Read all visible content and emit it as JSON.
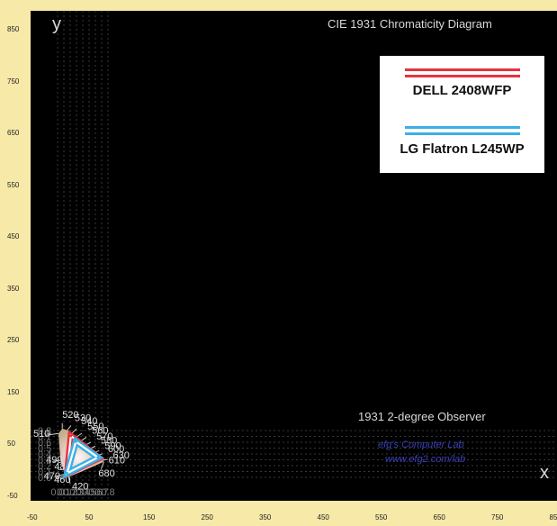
{
  "diagram": {
    "title": "CIE 1931 Chromaticity Diagram",
    "observer_label": "1931 2-degree Observer",
    "credit_line1": "efg's Computer Lab",
    "credit_line2": "www.efg2.com/lab",
    "x_axis_letter": "x",
    "y_axis_letter": "y",
    "x_ticks": [
      "0.0",
      "0.1",
      "0.2",
      "0.3",
      "0.4",
      "0.5",
      "0.6",
      "0.7",
      "0.8"
    ],
    "y_ticks": [
      "0.0",
      "0.1",
      "0.2",
      "0.3",
      "0.4",
      "0.5",
      "0.6",
      "0.7",
      "0.8"
    ],
    "wavelengths": [
      {
        "nm": "420",
        "x": 0.1714,
        "y": 0.0051
      },
      {
        "nm": "460",
        "x": 0.144,
        "y": 0.0297
      },
      {
        "nm": "470",
        "x": 0.1241,
        "y": 0.0578
      },
      {
        "nm": "480",
        "x": 0.0913,
        "y": 0.1327
      },
      {
        "nm": "490",
        "x": 0.0454,
        "y": 0.295
      },
      {
        "nm": "510",
        "x": 0.0139,
        "y": 0.7502
      },
      {
        "nm": "520",
        "x": 0.0743,
        "y": 0.8338
      },
      {
        "nm": "530",
        "x": 0.1547,
        "y": 0.8059
      },
      {
        "nm": "540",
        "x": 0.2296,
        "y": 0.7543
      },
      {
        "nm": "550",
        "x": 0.3016,
        "y": 0.6923
      },
      {
        "nm": "560",
        "x": 0.3731,
        "y": 0.6245
      },
      {
        "nm": "570",
        "x": 0.4441,
        "y": 0.5547
      },
      {
        "nm": "580",
        "x": 0.5125,
        "y": 0.4866
      },
      {
        "nm": "590",
        "x": 0.5752,
        "y": 0.4242
      },
      {
        "nm": "600",
        "x": 0.627,
        "y": 0.3725
      },
      {
        "nm": "610",
        "x": 0.6658,
        "y": 0.334
      },
      {
        "nm": "630",
        "x": 0.7079,
        "y": 0.292
      },
      {
        "nm": "680",
        "x": 0.7347,
        "y": 0.2653
      }
    ]
  },
  "outer_axis": {
    "left_ticks": [
      "850",
      "750",
      "650",
      "550",
      "450",
      "350",
      "250",
      "150",
      "50",
      "-50"
    ],
    "bottom_ticks": [
      "-50",
      "50",
      "150",
      "250",
      "350",
      "450",
      "550",
      "650",
      "750",
      "850"
    ]
  },
  "legend": {
    "items": [
      {
        "label": "DELL 2408WFP",
        "color": "#e8323c"
      },
      {
        "label": "LG Flatron L245WP",
        "color": "#3ab0e6"
      }
    ]
  },
  "chart_data": {
    "type": "scatter",
    "title": "CIE 1931 Chromaticity Diagram",
    "xlabel": "x",
    "ylabel": "y",
    "xlim": [
      -0.05,
      0.85
    ],
    "ylim": [
      -0.05,
      0.85
    ],
    "series": [
      {
        "name": "DELL 2408WFP",
        "points": [
          [
            0.21,
            0.71
          ],
          [
            0.66,
            0.33
          ],
          [
            0.15,
            0.06
          ]
        ]
      },
      {
        "name": "LG Flatron L245WP",
        "points": [
          [
            0.29,
            0.61
          ],
          [
            0.64,
            0.34
          ],
          [
            0.15,
            0.07
          ]
        ]
      }
    ]
  }
}
